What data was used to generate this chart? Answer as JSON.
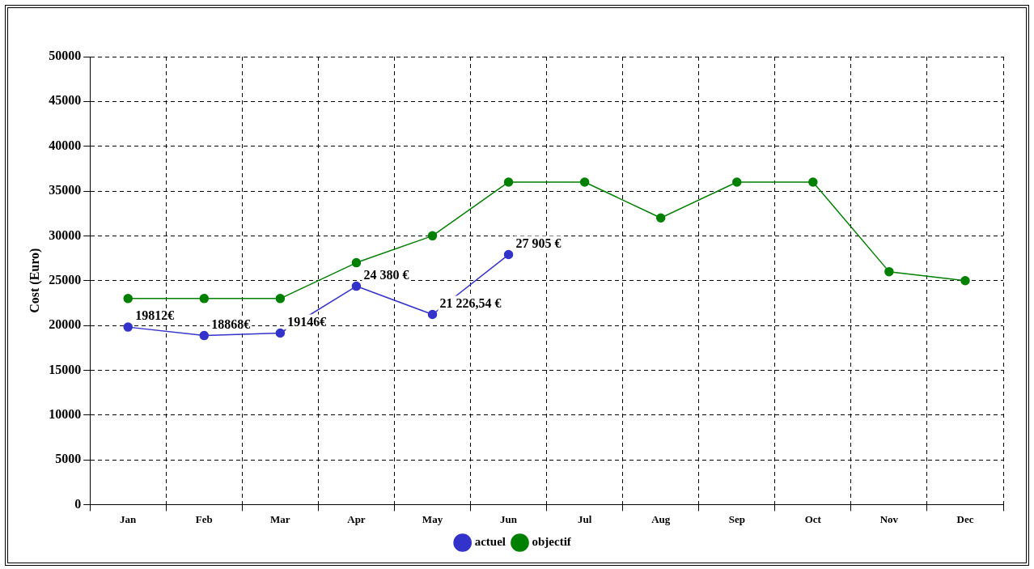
{
  "chart_data": {
    "type": "line",
    "ylabel": "Cost (Euro)",
    "categories": [
      "Jan",
      "Feb",
      "Mar",
      "Apr",
      "May",
      "Jun",
      "Jul",
      "Aug",
      "Sep",
      "Oct",
      "Nov",
      "Dec"
    ],
    "series": [
      {
        "name": "actuel",
        "color": "#3333cc",
        "values": [
          19812,
          18868,
          19146,
          24380,
          21226.54,
          27905,
          null,
          null,
          null,
          null,
          null,
          null
        ],
        "value_labels": [
          "19812€",
          "18868€",
          "19146€",
          "24 380 €",
          "21 226,54 €",
          "27 905 €",
          null,
          null,
          null,
          null,
          null,
          null
        ]
      },
      {
        "name": "objectif",
        "color": "#008000",
        "values": [
          23000,
          23000,
          23000,
          27000,
          30000,
          36000,
          36000,
          32000,
          36000,
          36000,
          26000,
          25000
        ]
      }
    ],
    "ylim": [
      0,
      50000
    ],
    "yticks": [
      0,
      5000,
      10000,
      15000,
      20000,
      25000,
      30000,
      35000,
      40000,
      45000,
      50000
    ],
    "grid": true,
    "legend": "bottom",
    "marker": "circle",
    "line_style": "solid"
  }
}
